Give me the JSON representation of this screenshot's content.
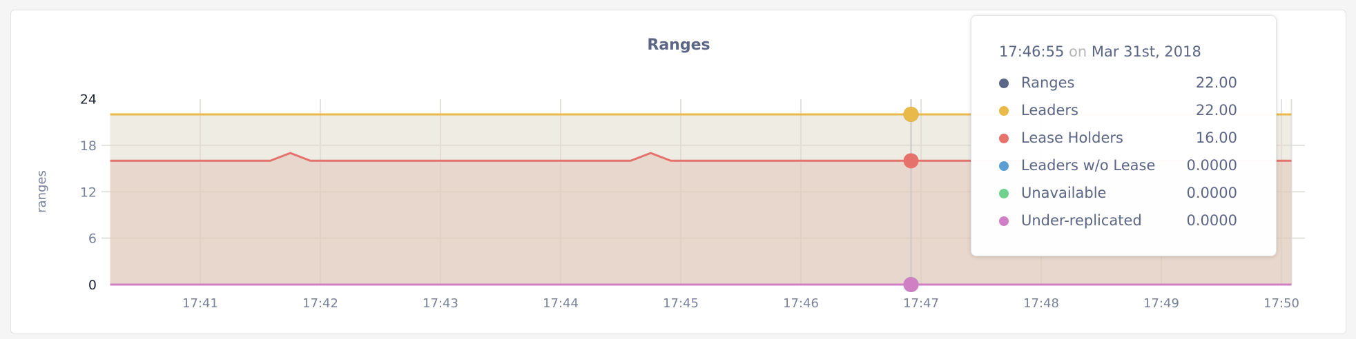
{
  "chart_data": {
    "type": "area",
    "title": "Ranges",
    "ylabel": "ranges",
    "xlabel": "",
    "ylim": [
      0,
      24
    ],
    "yticks": [
      "0",
      "6",
      "12",
      "18",
      "24"
    ],
    "xticks": [
      "17:41",
      "17:42",
      "17:43",
      "17:44",
      "17:45",
      "17:46",
      "17:47",
      "17:48",
      "17:49",
      "17:50"
    ],
    "xlim": [
      "17:40:15",
      "17:50:05"
    ],
    "grid": true,
    "series": [
      {
        "name": "Ranges",
        "color": "#5a6787",
        "points": [
          [
            "17:40:15",
            22
          ],
          [
            "17:50:05",
            22
          ]
        ]
      },
      {
        "name": "Leaders",
        "color": "#e9b949",
        "points": [
          [
            "17:40:15",
            22
          ],
          [
            "17:50:05",
            22
          ]
        ]
      },
      {
        "name": "Lease Holders",
        "color": "#e5726b",
        "points": [
          [
            "17:40:15",
            16
          ],
          [
            "17:41:35",
            16
          ],
          [
            "17:41:45",
            17
          ],
          [
            "17:41:55",
            16
          ],
          [
            "17:44:35",
            16
          ],
          [
            "17:44:45",
            17
          ],
          [
            "17:44:55",
            16
          ],
          [
            "17:50:05",
            16
          ]
        ]
      },
      {
        "name": "Leaders w/o Lease",
        "color": "#5c9ed4",
        "points": [
          [
            "17:40:15",
            0
          ],
          [
            "17:50:05",
            0
          ]
        ]
      },
      {
        "name": "Unavailable",
        "color": "#6fd38d",
        "points": [
          [
            "17:40:15",
            0
          ],
          [
            "17:50:05",
            0
          ]
        ]
      },
      {
        "name": "Under-replicated",
        "color": "#d07fc4",
        "points": [
          [
            "17:40:15",
            0
          ],
          [
            "17:50:05",
            0
          ]
        ]
      }
    ]
  },
  "tooltip": {
    "time": "17:46:55",
    "on": "on",
    "date": "Mar 31st, 2018",
    "rows": [
      {
        "label": "Ranges",
        "value": "22.00",
        "color": "#5a6787"
      },
      {
        "label": "Leaders",
        "value": "22.00",
        "color": "#e9b949"
      },
      {
        "label": "Lease Holders",
        "value": "16.00",
        "color": "#e5726b"
      },
      {
        "label": "Leaders w/o Lease",
        "value": "0.0000",
        "color": "#5c9ed4"
      },
      {
        "label": "Unavailable",
        "value": "0.0000",
        "color": "#6fd38d"
      },
      {
        "label": "Under-replicated",
        "value": "0.0000",
        "color": "#d07fc4"
      }
    ]
  }
}
